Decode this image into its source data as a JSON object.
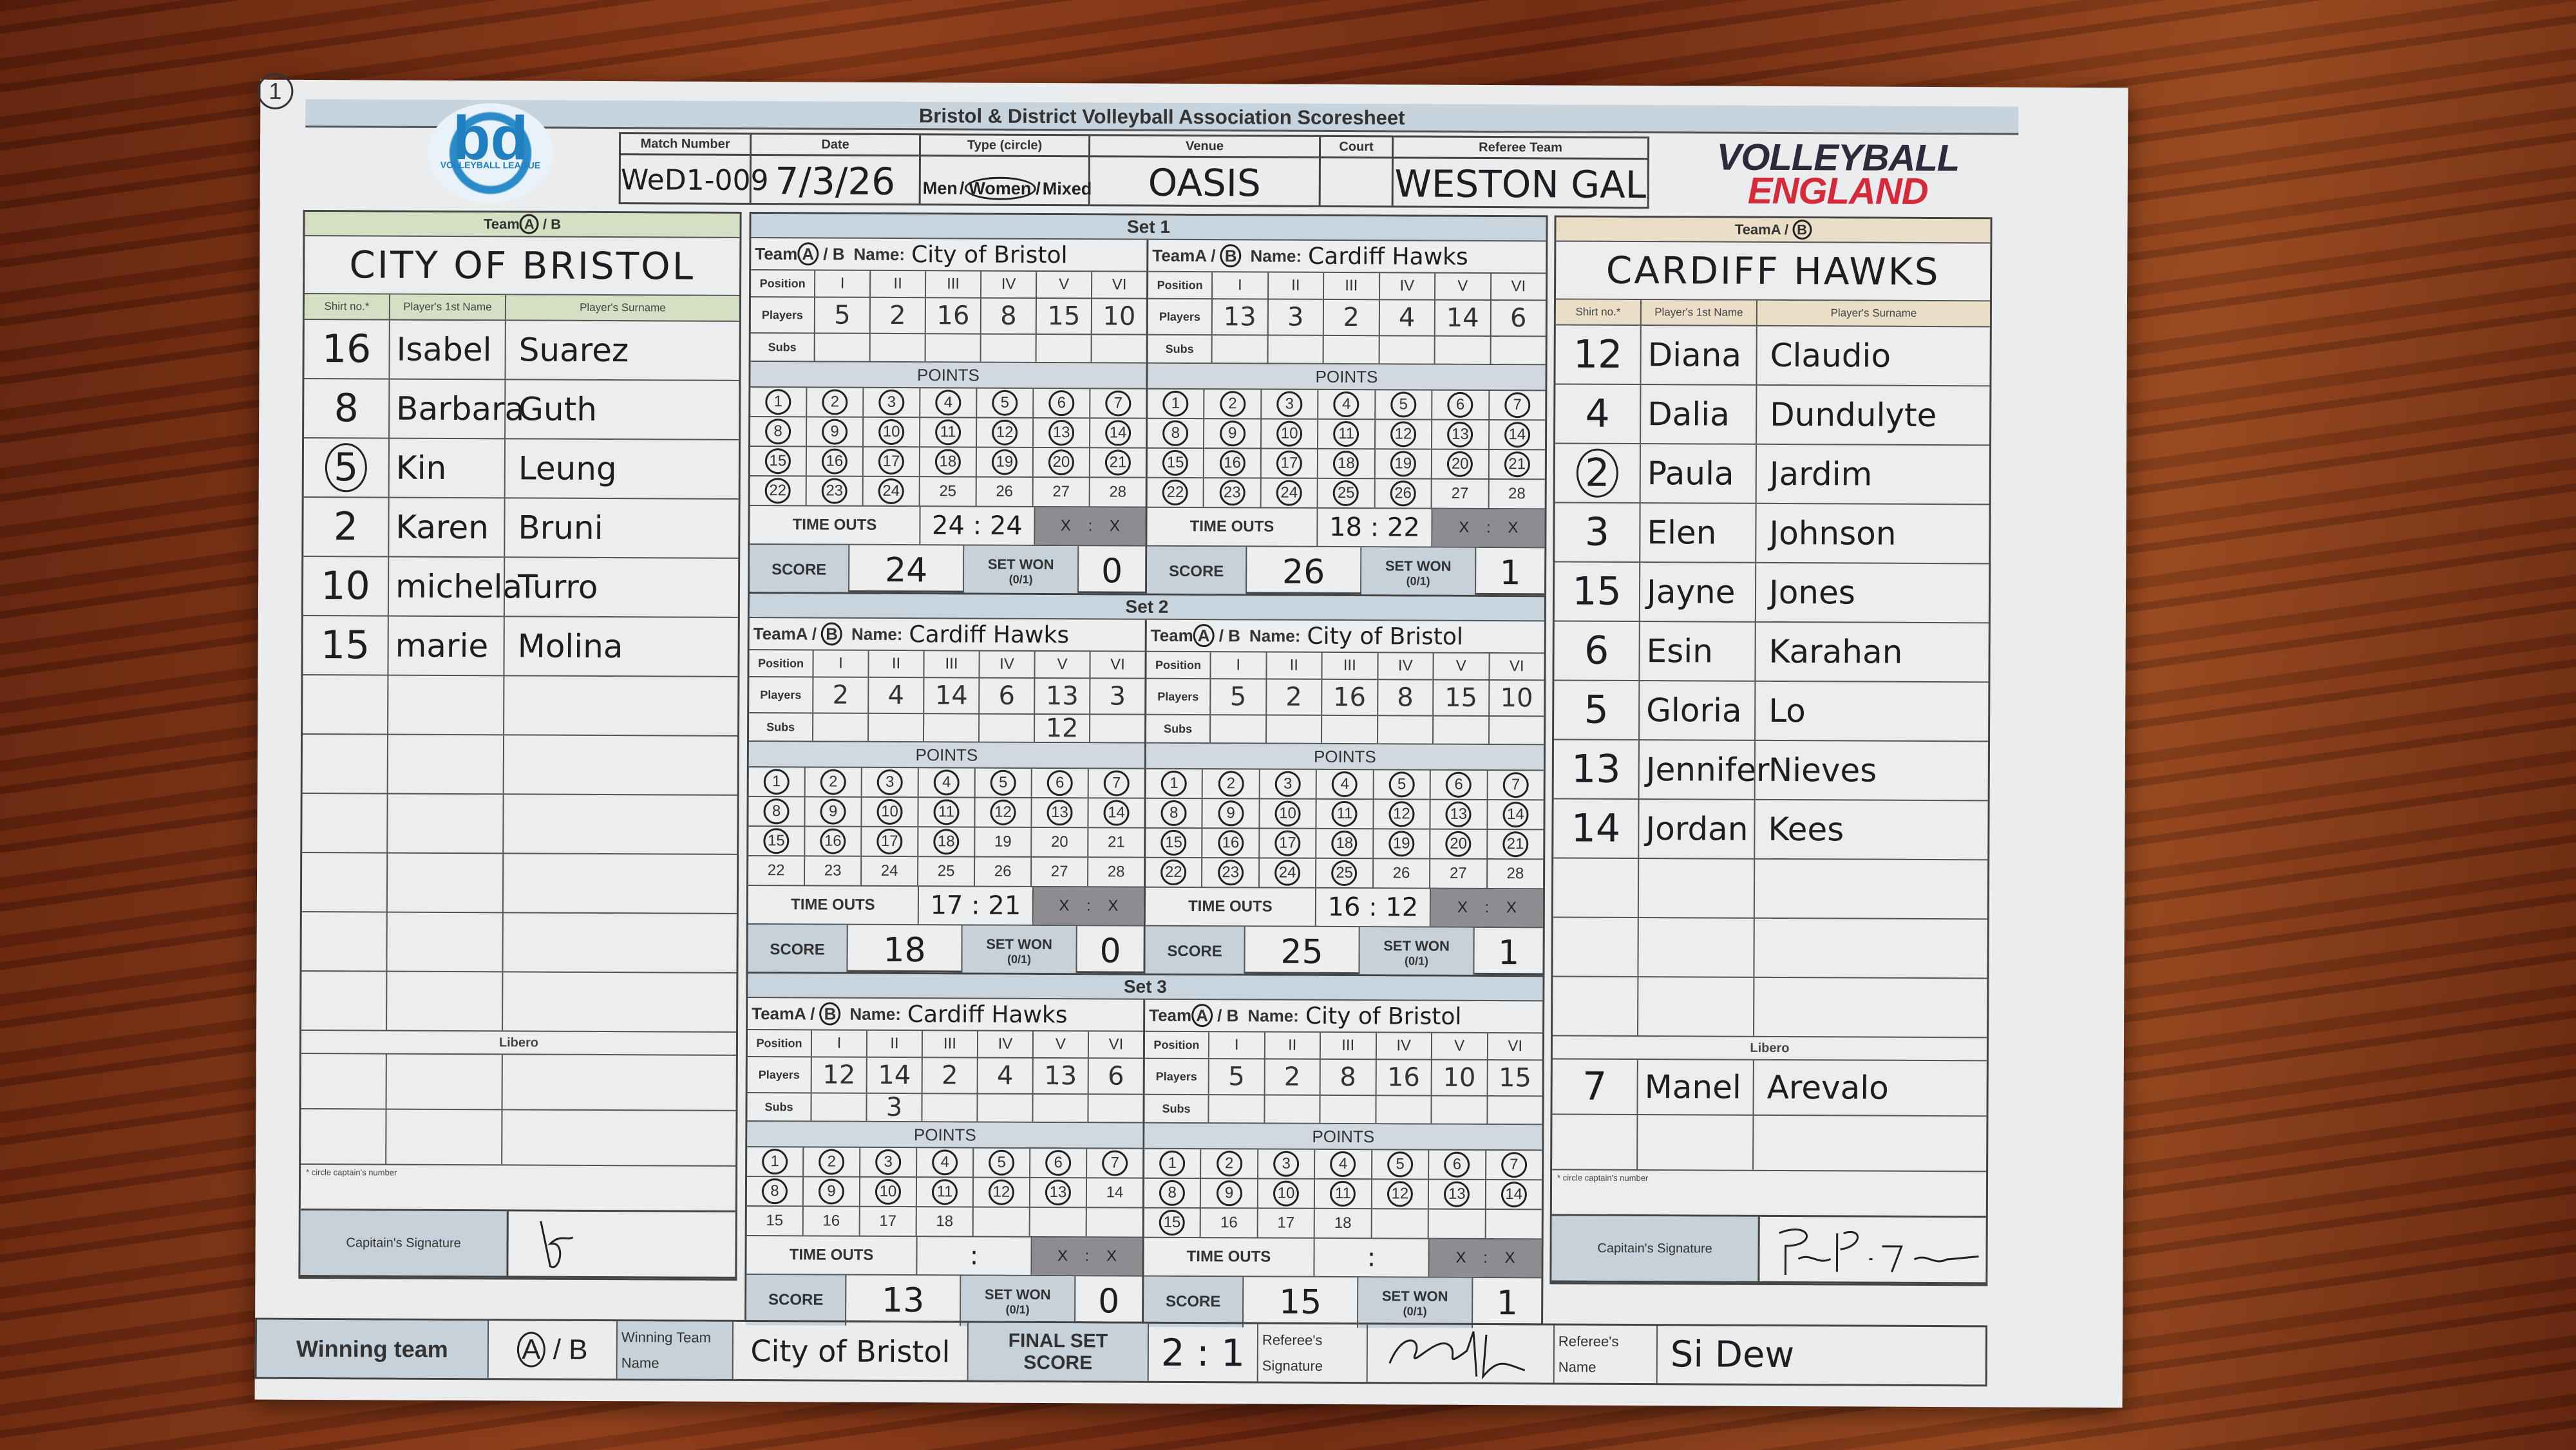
{
  "page_marker": "1",
  "header": {
    "title": "Bristol & District Volleyball Association Scoresheet"
  },
  "logos": {
    "left_letters": "bd",
    "left_caption": "VOLLEYBALL LEAGUE",
    "right_line1": "VOLLEYBALL",
    "right_line2": "ENGLAND",
    "right_color": "#d42a3a"
  },
  "match": {
    "labels": {
      "match_number": "Match Number",
      "date": "Date",
      "type": "Type (circle)",
      "venue": "Venue",
      "court": "Court",
      "referee_team": "Referee Team"
    },
    "match_number": "WeD1-009",
    "date": "7/3/26",
    "type_options": [
      "Men",
      "Women",
      "Mixed"
    ],
    "type_selected": "Women",
    "venue": "OASIS",
    "court": "",
    "referee_team": "WESTON GAL"
  },
  "labels": {
    "team": "Team",
    "team_a": "A",
    "team_b": "B",
    "name": "Name:",
    "shirt_no": "Shirt no.*",
    "first_name": "Player's 1st Name",
    "surname": "Player's Surname",
    "libero": "Libero",
    "footnote": "* circle captain's number",
    "captain_signature": "Capitain's Signature",
    "position": "Position",
    "players": "Players",
    "subs": "Subs",
    "points": "POINTS",
    "time_outs": "TIME OUTS",
    "score": "SCORE",
    "set_won": "SET WON",
    "set_won_hint": "(0/1)",
    "positions": [
      "I",
      "II",
      "III",
      "IV",
      "V",
      "VI"
    ]
  },
  "teams": [
    {
      "selected": "A",
      "name": "CITY OF BRISTOL",
      "header_color": "#d5dfc3",
      "captain": "5",
      "players": [
        {
          "shirt": "16",
          "first": "Isabel",
          "surname": "Suarez"
        },
        {
          "shirt": "8",
          "first": "Barbara",
          "surname": "Guth"
        },
        {
          "shirt": "5",
          "first": "Kin",
          "surname": "Leung"
        },
        {
          "shirt": "2",
          "first": "Karen",
          "surname": "Bruni"
        },
        {
          "shirt": "10",
          "first": "michela",
          "surname": "Turro"
        },
        {
          "shirt": "15",
          "first": "marie",
          "surname": "Molina"
        }
      ],
      "libero": []
    },
    {
      "selected": "B",
      "name": "CARDIFF HAWKS",
      "header_color": "#ebdec7",
      "captain": "2",
      "players": [
        {
          "shirt": "12",
          "first": "Diana",
          "surname": "Claudio"
        },
        {
          "shirt": "4",
          "first": "Dalia",
          "surname": "Dundulyte"
        },
        {
          "shirt": "2",
          "first": "Paula",
          "surname": "Jardim"
        },
        {
          "shirt": "3",
          "first": "Elen",
          "surname": "Johnson"
        },
        {
          "shirt": "15",
          "first": "Jayne",
          "surname": "Jones"
        },
        {
          "shirt": "6",
          "first": "Esin",
          "surname": "Karahan"
        },
        {
          "shirt": "5",
          "first": "Gloria",
          "surname": "Lo"
        },
        {
          "shirt": "13",
          "first": "Jennifer",
          "surname": "Nieves"
        },
        {
          "shirt": "14",
          "first": "Jordan",
          "surname": "Kees"
        }
      ],
      "libero": [
        {
          "shirt": "7",
          "first": "Manel",
          "surname": "Arevalo"
        }
      ]
    }
  ],
  "sets": [
    {
      "title": "Set 1",
      "sides": [
        {
          "selected": "A",
          "name": "City of Bristol",
          "players": [
            "5",
            "2",
            "16",
            "8",
            "15",
            "10"
          ],
          "subs": [
            "",
            "",
            "",
            "",
            "",
            ""
          ],
          "points_printed": 28,
          "score": "24",
          "time_outs": "24 : 24",
          "time_outs_unused": "X : X",
          "set_won": "0"
        },
        {
          "selected": "B",
          "name": "Cardiff Hawks",
          "players": [
            "13",
            "3",
            "2",
            "4",
            "14",
            "6"
          ],
          "subs": [
            "",
            "",
            "",
            "",
            "",
            ""
          ],
          "points_printed": 28,
          "score": "26",
          "time_outs": "18 : 22",
          "time_outs_unused": "X : X",
          "set_won": "1"
        }
      ]
    },
    {
      "title": "Set 2",
      "sides": [
        {
          "selected": "B",
          "name": "Cardiff Hawks",
          "players": [
            "2",
            "4",
            "14",
            "6",
            "13",
            "3"
          ],
          "subs": [
            "",
            "",
            "",
            "",
            "12",
            ""
          ],
          "points_printed": 28,
          "score": "18",
          "time_outs": "17 : 21",
          "time_outs_unused": "X : X",
          "set_won": "0"
        },
        {
          "selected": "A",
          "name": "City of Bristol",
          "players": [
            "5",
            "2",
            "16",
            "8",
            "15",
            "10"
          ],
          "subs": [
            "",
            "",
            "",
            "",
            "",
            ""
          ],
          "points_printed": 28,
          "score": "25",
          "time_outs": "16 : 12",
          "time_outs_unused": "X : X",
          "set_won": "1"
        }
      ]
    },
    {
      "title": "Set 3",
      "sides": [
        {
          "selected": "B",
          "name": "Cardiff Hawks",
          "players": [
            "12",
            "14",
            "2",
            "4",
            "13",
            "6"
          ],
          "subs": [
            "",
            "3",
            "",
            "",
            "",
            ""
          ],
          "points_printed": 18,
          "score": "13",
          "time_outs": ":",
          "time_outs_unused": "X : X",
          "set_won": "0"
        },
        {
          "selected": "A",
          "name": "City of Bristol",
          "players": [
            "5",
            "2",
            "8",
            "16",
            "10",
            "15"
          ],
          "subs": [
            "",
            "",
            "",
            "",
            "",
            ""
          ],
          "points_printed": 18,
          "score": "15",
          "time_outs": ":",
          "time_outs_unused": "X : X",
          "set_won": "1"
        }
      ]
    }
  ],
  "bottom": {
    "winning_team_label": "Winning team",
    "winning_team_selected": "A",
    "winning_team_name_label1": "Winning Team",
    "winning_team_name_label2": "Name",
    "winning_team_name": "City of Bristol",
    "final_set_score_label1": "FINAL SET",
    "final_set_score_label2": "SCORE",
    "final_set_score": "2 : 1",
    "referee_signature_label1": "Referee's",
    "referee_signature_label2": "Signature",
    "referee_name_label1": "Referee's",
    "referee_name_label2": "Name",
    "referee_name": "Si Dew"
  }
}
